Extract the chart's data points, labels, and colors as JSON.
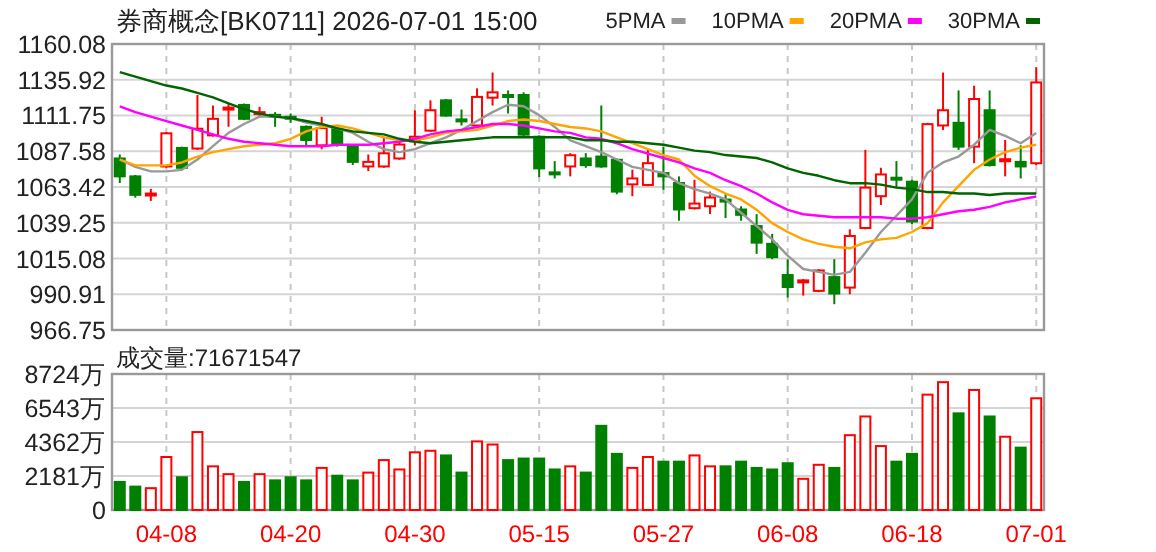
{
  "chart_data": [
    {
      "type": "candlestick",
      "title": "券商概念[BK0711] 2026-07-01 15:00",
      "legend": "top right",
      "grid": true,
      "tick_labels": "y",
      "categories": [
        null,
        null,
        null,
        null,
        null,
        null,
        null,
        null,
        null,
        null,
        null,
        null,
        null,
        null,
        null,
        null,
        null,
        null,
        null,
        null,
        null,
        null,
        null,
        null,
        null,
        null,
        null,
        null,
        null,
        null,
        null,
        null,
        null,
        null,
        null,
        null,
        null,
        null,
        null,
        null,
        null,
        null,
        null,
        null,
        null,
        null,
        null,
        null,
        null,
        null,
        null,
        null,
        null,
        null,
        null,
        null,
        null,
        null,
        null,
        null
      ],
      "ylim": [
        966.75,
        1160.08
      ],
      "yticks": [
        966.75,
        990.91,
        1015.08,
        1039.25,
        1063.42,
        1087.58,
        1111.75,
        1135.92,
        1160.08
      ],
      "ohlc": [
        [
          1082.7,
          1085.4,
          1066.1,
          1070.6
        ],
        [
          1070.6,
          1071.5,
          1056.2,
          1058.1
        ],
        [
          1058.1,
          1062.1,
          1054.0,
          1059.0
        ],
        [
          1077.3,
          1100.6,
          1076.4,
          1099.7
        ],
        [
          1089.8,
          1090.7,
          1075.5,
          1076.4
        ],
        [
          1089.4,
          1125.6,
          1088.5,
          1102.8
        ],
        [
          1098.3,
          1118.5,
          1097.5,
          1109.5
        ],
        [
          1115.8,
          1119.4,
          1104.1,
          1117.1
        ],
        [
          1118.9,
          1119.8,
          1108.6,
          1109.5
        ],
        [
          1113.1,
          1117.6,
          1110.4,
          1114.0
        ],
        [
          1112.2,
          1114.0,
          1104.1,
          1111.3
        ],
        [
          1110.9,
          1113.1,
          1106.8,
          1110.0
        ],
        [
          1104.1,
          1105.0,
          1091.6,
          1095.2
        ],
        [
          1091.6,
          1110.9,
          1088.9,
          1103.2
        ],
        [
          1102.8,
          1105.0,
          1090.7,
          1092.9
        ],
        [
          1090.7,
          1091.6,
          1078.2,
          1080.4
        ],
        [
          1077.3,
          1085.4,
          1074.2,
          1080.4
        ],
        [
          1077.3,
          1097.4,
          1076.4,
          1086.2
        ],
        [
          1082.7,
          1095.2,
          1081.8,
          1092.1
        ],
        [
          1094.3,
          1115.3,
          1091.6,
          1097.4
        ],
        [
          1101.5,
          1122.0,
          1100.6,
          1115.3
        ],
        [
          1122.0,
          1122.9,
          1110.9,
          1111.7
        ],
        [
          1109.1,
          1115.8,
          1105.0,
          1108.2
        ],
        [
          1105.0,
          1130.1,
          1103.2,
          1124.3
        ],
        [
          1123.8,
          1140.8,
          1118.5,
          1127.4
        ],
        [
          1125.6,
          1128.7,
          1113.1,
          1124.7
        ],
        [
          1125.6,
          1127.4,
          1097.9,
          1098.8
        ],
        [
          1097.4,
          1098.3,
          1070.1,
          1076.0
        ],
        [
          1073.3,
          1080.9,
          1069.2,
          1072.4
        ],
        [
          1077.3,
          1086.3,
          1070.6,
          1084.9
        ],
        [
          1082.7,
          1086.3,
          1076.4,
          1078.2
        ],
        [
          1084.0,
          1118.5,
          1076.4,
          1077.3
        ],
        [
          1081.8,
          1082.7,
          1058.5,
          1060.3
        ],
        [
          1065.2,
          1075.1,
          1057.2,
          1069.2
        ],
        [
          1064.8,
          1088.5,
          1063.9,
          1079.5
        ],
        [
          1072.8,
          1090.7,
          1061.6,
          1070.6
        ],
        [
          1066.1,
          1070.6,
          1040.6,
          1048.2
        ],
        [
          1049.1,
          1068.3,
          1048.2,
          1052.2
        ],
        [
          1050.4,
          1060.3,
          1045.1,
          1056.3
        ],
        [
          1054.9,
          1058.5,
          1042.4,
          1054.0
        ],
        [
          1048.2,
          1050.4,
          1040.6,
          1044.6
        ],
        [
          1037.0,
          1045.1,
          1018.2,
          1025.8
        ],
        [
          1025.0,
          1031.7,
          1014.6,
          1016.0
        ],
        [
          1003.9,
          1014.6,
          988.7,
          995.8
        ],
        [
          999.4,
          1001.2,
          990.0,
          1000.3
        ],
        [
          993.2,
          1007.9,
          992.3,
          1007.0
        ],
        [
          1002.5,
          1014.6,
          984.2,
          991.4
        ],
        [
          995.4,
          1034.8,
          990.9,
          1030.3
        ],
        [
          1035.7,
          1088.5,
          1034.8,
          1063.0
        ],
        [
          1057.2,
          1076.4,
          1051.3,
          1071.9
        ],
        [
          1069.7,
          1080.9,
          1063.0,
          1068.8
        ],
        [
          1067.0,
          1068.3,
          1038.4,
          1040.1
        ],
        [
          1035.7,
          1106.8,
          1034.8,
          1105.9
        ],
        [
          1105.0,
          1140.8,
          1101.9,
          1115.3
        ],
        [
          1106.8,
          1128.7,
          1088.5,
          1090.7
        ],
        [
          1090.7,
          1131.9,
          1079.5,
          1122.9
        ],
        [
          1115.3,
          1128.7,
          1077.3,
          1078.2
        ],
        [
          1081.3,
          1095.2,
          1070.6,
          1082.2
        ],
        [
          1080.4,
          1091.6,
          1069.2,
          1077.3
        ],
        [
          1079.5,
          1144.4,
          1078.2,
          1134.1
        ]
      ],
      "colors": [
        "#008000",
        "#008000",
        "#ff0000",
        "#ff0000",
        "#008000",
        "#ff0000",
        "#ff0000",
        "#ff0000",
        "#008000",
        "#ff0000",
        "#008000",
        "#008000",
        "#008000",
        "#ff0000",
        "#008000",
        "#008000",
        "#ff0000",
        "#ff0000",
        "#ff0000",
        "#ff0000",
        "#ff0000",
        "#008000",
        "#008000",
        "#ff0000",
        "#ff0000",
        "#008000",
        "#008000",
        "#008000",
        "#008000",
        "#ff0000",
        "#008000",
        "#008000",
        "#008000",
        "#ff0000",
        "#ff0000",
        "#008000",
        "#008000",
        "#ff0000",
        "#ff0000",
        "#008000",
        "#008000",
        "#008000",
        "#008000",
        "#008000",
        "#ff0000",
        "#ff0000",
        "#008000",
        "#ff0000",
        "#ff0000",
        "#ff0000",
        "#008000",
        "#008000",
        "#ff0000",
        "#ff0000",
        "#008000",
        "#ff0000",
        "#008000",
        "#ff0000",
        "#008000",
        "#ff0000"
      ],
      "series": [
        {
          "name": "5PMA",
          "type": "line",
          "color": "#999999",
          "values": [
            1082,
            1077,
            1074,
            1074,
            1075,
            1082,
            1091,
            1100,
            1106,
            1111,
            1111,
            1110,
            1107,
            1105,
            1103,
            1100,
            1094,
            1089,
            1087,
            1089,
            1093,
            1097,
            1102,
            1108,
            1114,
            1119,
            1118,
            1112,
            1104,
            1095,
            1091,
            1087,
            1082,
            1077,
            1075,
            1073,
            1066,
            1062,
            1059,
            1055,
            1046,
            1037,
            1028,
            1017,
            1008,
            1006,
            1004,
            1006,
            1019,
            1033,
            1044,
            1055,
            1073,
            1080,
            1084,
            1092,
            1102,
            1098,
            1093,
            1100
          ]
        },
        {
          "name": "10PMA",
          "type": "line",
          "color": "#ffa500",
          "values": [
            1082,
            1078,
            1078,
            1078,
            1080,
            1084,
            1087,
            1089,
            1091,
            1092,
            1093,
            1096,
            1101,
            1104,
            1105,
            1103,
            1100,
            1097,
            1095,
            1095,
            1097,
            1100,
            1101,
            1102,
            1105,
            1108,
            1109,
            1108,
            1106,
            1104,
            1103,
            1101,
            1097,
            1093,
            1089,
            1085,
            1082,
            1071,
            1064,
            1059,
            1055,
            1048,
            1039,
            1033,
            1028,
            1025,
            1023,
            1022,
            1026,
            1028,
            1029,
            1033,
            1039,
            1053,
            1064,
            1075,
            1082,
            1087,
            1090,
            1092
          ]
        },
        {
          "name": "20PMA",
          "type": "line",
          "color": "#ff00ff",
          "values": [
            1118,
            1114,
            1111,
            1108,
            1105,
            1102,
            1099,
            1096,
            1094,
            1093,
            1092,
            1091,
            1091,
            1091,
            1092,
            1092,
            1092,
            1093,
            1094,
            1096,
            1099,
            1101,
            1102,
            1104,
            1106,
            1106,
            1105,
            1103,
            1101,
            1100,
            1097,
            1096,
            1093,
            1089,
            1086,
            1083,
            1080,
            1076,
            1073,
            1068,
            1064,
            1059,
            1053,
            1048,
            1045,
            1044,
            1043,
            1043,
            1043,
            1043,
            1042,
            1042,
            1043,
            1045,
            1047,
            1048,
            1050,
            1053,
            1055,
            1057
          ]
        },
        {
          "name": "30PMA",
          "type": "line",
          "color": "#006400",
          "values": [
            1141,
            1138,
            1135,
            1132,
            1130,
            1127,
            1124,
            1120,
            1116,
            1113,
            1111,
            1110,
            1108,
            1106,
            1103,
            1101,
            1100,
            1099,
            1096,
            1094,
            1093,
            1094,
            1095,
            1096,
            1097,
            1097,
            1097,
            1097,
            1097,
            1097,
            1095,
            1095,
            1094,
            1094,
            1093,
            1092,
            1090,
            1088,
            1087,
            1085,
            1084,
            1083,
            1080,
            1076,
            1073,
            1071,
            1068,
            1066,
            1066,
            1065,
            1063,
            1062,
            1060,
            1060,
            1059,
            1059,
            1058,
            1059,
            1059,
            1059
          ]
        }
      ]
    },
    {
      "type": "bar",
      "title": "成交量:71671547",
      "grid": true,
      "categories": [
        null,
        null,
        null,
        "04-08",
        null,
        null,
        null,
        null,
        null,
        null,
        null,
        "04-20",
        null,
        null,
        null,
        null,
        null,
        null,
        null,
        "04-30",
        null,
        null,
        null,
        null,
        null,
        null,
        null,
        "05-15",
        null,
        null,
        null,
        null,
        null,
        null,
        null,
        "05-27",
        null,
        null,
        null,
        null,
        null,
        null,
        null,
        "06-08",
        null,
        null,
        null,
        null,
        null,
        null,
        null,
        "06-18",
        null,
        null,
        null,
        null,
        null,
        null,
        null,
        "07-01"
      ],
      "ylim": [
        0,
        8724
      ],
      "yticks": [
        0,
        {
          "value": 2181,
          "label": "2181万"
        },
        {
          "value": 4362,
          "label": "4362万"
        },
        {
          "value": 6543,
          "label": "6543万"
        },
        {
          "value": 8724,
          "label": "8724万"
        }
      ],
      "values": [
        1800,
        1500,
        1400,
        3400,
        2100,
        5000,
        2800,
        2300,
        1800,
        2300,
        1900,
        2100,
        1900,
        2700,
        2200,
        1900,
        2400,
        3200,
        2600,
        3700,
        3800,
        3500,
        2400,
        4400,
        4200,
        3200,
        3300,
        3300,
        2600,
        2800,
        2400,
        5400,
        3600,
        2700,
        3400,
        3100,
        3100,
        3500,
        2800,
        2800,
        3100,
        2700,
        2600,
        3000,
        2000,
        2900,
        2700,
        4800,
        6000,
        4100,
        3100,
        3600,
        7400,
        8200,
        6200,
        7700,
        6000,
        4700,
        4000,
        7167
      ],
      "colors": [
        "#008000",
        "#008000",
        "#ff0000",
        "#ff0000",
        "#008000",
        "#ff0000",
        "#ff0000",
        "#ff0000",
        "#008000",
        "#ff0000",
        "#008000",
        "#008000",
        "#008000",
        "#ff0000",
        "#008000",
        "#008000",
        "#ff0000",
        "#ff0000",
        "#ff0000",
        "#ff0000",
        "#ff0000",
        "#008000",
        "#008000",
        "#ff0000",
        "#ff0000",
        "#008000",
        "#008000",
        "#008000",
        "#008000",
        "#ff0000",
        "#008000",
        "#008000",
        "#008000",
        "#ff0000",
        "#ff0000",
        "#008000",
        "#008000",
        "#ff0000",
        "#ff0000",
        "#008000",
        "#008000",
        "#008000",
        "#008000",
        "#008000",
        "#ff0000",
        "#ff0000",
        "#008000",
        "#ff0000",
        "#ff0000",
        "#ff0000",
        "#008000",
        "#008000",
        "#ff0000",
        "#ff0000",
        "#008000",
        "#ff0000",
        "#008000",
        "#ff0000",
        "#008000",
        "#ff0000"
      ]
    }
  ]
}
